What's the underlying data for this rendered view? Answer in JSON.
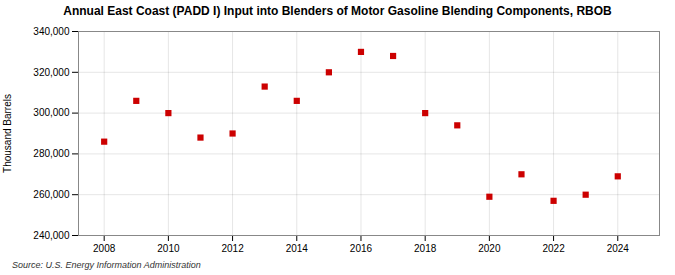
{
  "chart_data": {
    "type": "scatter",
    "title": "Annual East Coast (PADD I) Input into Blenders of Motor Gasoline Blending Components, RBOB",
    "ylabel": "Thousand Barrels",
    "source": "Source: U.S. Energy Information Administration",
    "x": [
      2008,
      2009,
      2010,
      2011,
      2012,
      2013,
      2014,
      2015,
      2016,
      2017,
      2018,
      2019,
      2020,
      2021,
      2022,
      2023,
      2024
    ],
    "values": [
      286000,
      306000,
      300000,
      288000,
      290000,
      313000,
      306000,
      320000,
      330000,
      328000,
      300000,
      294000,
      259000,
      270000,
      257000,
      260000,
      269000
    ],
    "color": "#cc0000",
    "marker": "square",
    "xlim": [
      2007.2,
      2025.3
    ],
    "xticks": [
      2008,
      2010,
      2012,
      2014,
      2016,
      2018,
      2020,
      2022,
      2024
    ],
    "ylim": [
      240000,
      340000
    ],
    "yticks": [
      {
        "value": 240000,
        "label": "240,000"
      },
      {
        "value": 260000,
        "label": "260,000"
      },
      {
        "value": 280000,
        "label": "280,000"
      },
      {
        "value": 300000,
        "label": "300,000"
      },
      {
        "value": 320000,
        "label": "320,000"
      },
      {
        "value": 340000,
        "label": "340,000"
      }
    ],
    "grid": true
  }
}
